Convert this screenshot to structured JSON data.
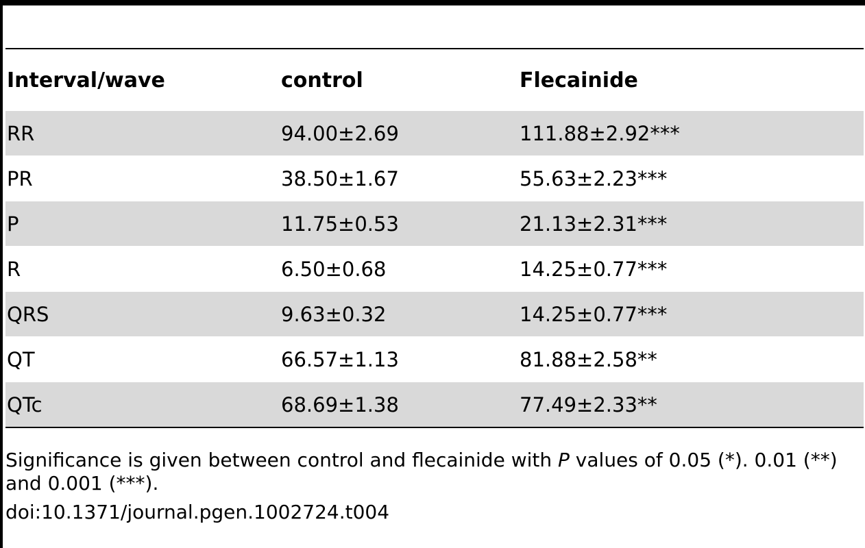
{
  "table": {
    "headers": [
      "Interval/wave",
      "control",
      "Flecainide"
    ],
    "rows": [
      {
        "label": "RR",
        "control": "94.00±2.69",
        "flecainide": "111.88±2.92***"
      },
      {
        "label": "PR",
        "control": "38.50±1.67",
        "flecainide": "55.63±2.23***"
      },
      {
        "label": "P",
        "control": "11.75±0.53",
        "flecainide": "21.13±2.31***"
      },
      {
        "label": "R",
        "control": "6.50±0.68",
        "flecainide": "14.25±0.77***"
      },
      {
        "label": "QRS",
        "control": "9.63±0.32",
        "flecainide": "14.25±0.77***"
      },
      {
        "label": "QT",
        "control": "66.57±1.13",
        "flecainide": "81.88±2.58**"
      },
      {
        "label": "QTc",
        "control": "68.69±1.38",
        "flecainide": "77.49±2.33**"
      }
    ]
  },
  "footnote": {
    "pre": "Significance is given between control and flecainide with ",
    "italic": "P",
    "post": " values of 0.05 (*). 0.01 (**) and 0.001 (***).",
    "doi": "doi:10.1371/journal.pgen.1002724.t004"
  },
  "colors": {
    "row_shade": "#d9d9d9",
    "rule": "#000000"
  }
}
